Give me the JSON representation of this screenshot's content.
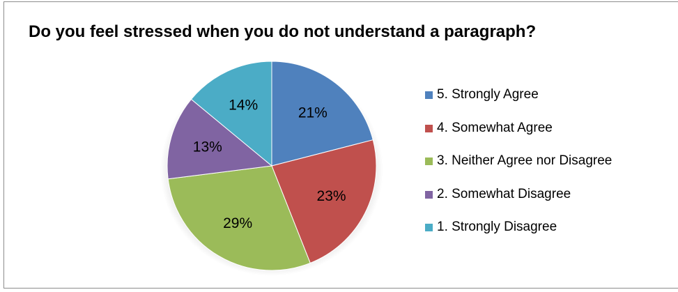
{
  "chart_data": {
    "type": "pie",
    "title": "Do you feel stressed when you do not understand a paragraph?",
    "legend_position": "right",
    "slices": [
      {
        "label": "5. Strongly Agree",
        "value": 21,
        "display": "21%",
        "color": "#4f81bd"
      },
      {
        "label": "4. Somewhat Agree",
        "value": 23,
        "display": "23%",
        "color": "#c0504d"
      },
      {
        "label": "3. Neither Agree nor Disagree",
        "value": 29,
        "display": "29%",
        "color": "#9bbb59"
      },
      {
        "label": "2. Somewhat Disagree",
        "value": 13,
        "display": "13%",
        "color": "#8064a2"
      },
      {
        "label": "1. Strongly Disagree",
        "value": 14,
        "display": "14%",
        "color": "#4bacc6"
      }
    ]
  }
}
